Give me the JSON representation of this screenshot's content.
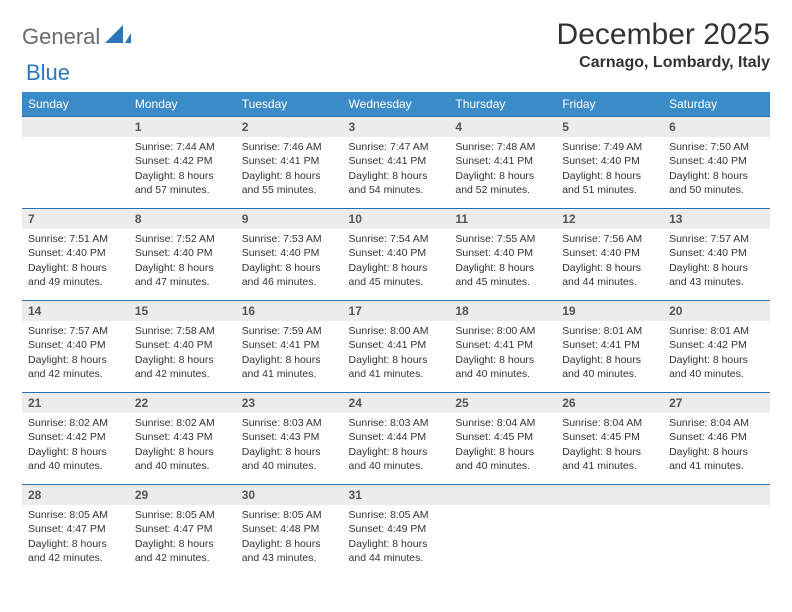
{
  "brand": {
    "general": "General",
    "blue": "Blue"
  },
  "title": "December 2025",
  "location": "Carnago, Lombardy, Italy",
  "colors": {
    "header_bg": "#3b8bc9",
    "header_text": "#ffffff",
    "row_divider": "#2b70ad",
    "daynum_bg": "#ececec",
    "text": "#333333",
    "logo_gray": "#6a6a6a",
    "logo_blue": "#2b77bb",
    "page_bg": "#ffffff"
  },
  "weekdays": [
    "Sunday",
    "Monday",
    "Tuesday",
    "Wednesday",
    "Thursday",
    "Friday",
    "Saturday"
  ],
  "cells": [
    null,
    {
      "n": 1,
      "sr": "7:44 AM",
      "ss": "4:42 PM",
      "dl": "8 hours and 57 minutes."
    },
    {
      "n": 2,
      "sr": "7:46 AM",
      "ss": "4:41 PM",
      "dl": "8 hours and 55 minutes."
    },
    {
      "n": 3,
      "sr": "7:47 AM",
      "ss": "4:41 PM",
      "dl": "8 hours and 54 minutes."
    },
    {
      "n": 4,
      "sr": "7:48 AM",
      "ss": "4:41 PM",
      "dl": "8 hours and 52 minutes."
    },
    {
      "n": 5,
      "sr": "7:49 AM",
      "ss": "4:40 PM",
      "dl": "8 hours and 51 minutes."
    },
    {
      "n": 6,
      "sr": "7:50 AM",
      "ss": "4:40 PM",
      "dl": "8 hours and 50 minutes."
    },
    {
      "n": 7,
      "sr": "7:51 AM",
      "ss": "4:40 PM",
      "dl": "8 hours and 49 minutes."
    },
    {
      "n": 8,
      "sr": "7:52 AM",
      "ss": "4:40 PM",
      "dl": "8 hours and 47 minutes."
    },
    {
      "n": 9,
      "sr": "7:53 AM",
      "ss": "4:40 PM",
      "dl": "8 hours and 46 minutes."
    },
    {
      "n": 10,
      "sr": "7:54 AM",
      "ss": "4:40 PM",
      "dl": "8 hours and 45 minutes."
    },
    {
      "n": 11,
      "sr": "7:55 AM",
      "ss": "4:40 PM",
      "dl": "8 hours and 45 minutes."
    },
    {
      "n": 12,
      "sr": "7:56 AM",
      "ss": "4:40 PM",
      "dl": "8 hours and 44 minutes."
    },
    {
      "n": 13,
      "sr": "7:57 AM",
      "ss": "4:40 PM",
      "dl": "8 hours and 43 minutes."
    },
    {
      "n": 14,
      "sr": "7:57 AM",
      "ss": "4:40 PM",
      "dl": "8 hours and 42 minutes."
    },
    {
      "n": 15,
      "sr": "7:58 AM",
      "ss": "4:40 PM",
      "dl": "8 hours and 42 minutes."
    },
    {
      "n": 16,
      "sr": "7:59 AM",
      "ss": "4:41 PM",
      "dl": "8 hours and 41 minutes."
    },
    {
      "n": 17,
      "sr": "8:00 AM",
      "ss": "4:41 PM",
      "dl": "8 hours and 41 minutes."
    },
    {
      "n": 18,
      "sr": "8:00 AM",
      "ss": "4:41 PM",
      "dl": "8 hours and 40 minutes."
    },
    {
      "n": 19,
      "sr": "8:01 AM",
      "ss": "4:41 PM",
      "dl": "8 hours and 40 minutes."
    },
    {
      "n": 20,
      "sr": "8:01 AM",
      "ss": "4:42 PM",
      "dl": "8 hours and 40 minutes."
    },
    {
      "n": 21,
      "sr": "8:02 AM",
      "ss": "4:42 PM",
      "dl": "8 hours and 40 minutes."
    },
    {
      "n": 22,
      "sr": "8:02 AM",
      "ss": "4:43 PM",
      "dl": "8 hours and 40 minutes."
    },
    {
      "n": 23,
      "sr": "8:03 AM",
      "ss": "4:43 PM",
      "dl": "8 hours and 40 minutes."
    },
    {
      "n": 24,
      "sr": "8:03 AM",
      "ss": "4:44 PM",
      "dl": "8 hours and 40 minutes."
    },
    {
      "n": 25,
      "sr": "8:04 AM",
      "ss": "4:45 PM",
      "dl": "8 hours and 40 minutes."
    },
    {
      "n": 26,
      "sr": "8:04 AM",
      "ss": "4:45 PM",
      "dl": "8 hours and 41 minutes."
    },
    {
      "n": 27,
      "sr": "8:04 AM",
      "ss": "4:46 PM",
      "dl": "8 hours and 41 minutes."
    },
    {
      "n": 28,
      "sr": "8:05 AM",
      "ss": "4:47 PM",
      "dl": "8 hours and 42 minutes."
    },
    {
      "n": 29,
      "sr": "8:05 AM",
      "ss": "4:47 PM",
      "dl": "8 hours and 42 minutes."
    },
    {
      "n": 30,
      "sr": "8:05 AM",
      "ss": "4:48 PM",
      "dl": "8 hours and 43 minutes."
    },
    {
      "n": 31,
      "sr": "8:05 AM",
      "ss": "4:49 PM",
      "dl": "8 hours and 44 minutes."
    },
    null,
    null,
    null
  ],
  "labels": {
    "sunrise": "Sunrise: ",
    "sunset": "Sunset: ",
    "daylight": "Daylight: "
  }
}
